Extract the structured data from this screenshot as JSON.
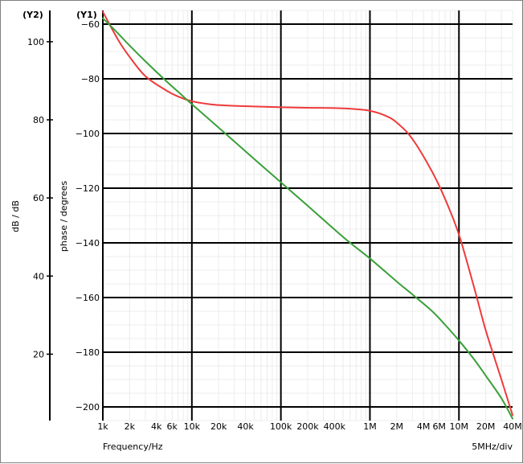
{
  "chart_data": {
    "type": "line",
    "title": "",
    "xlabel": "Frequency/Hz",
    "x_scale": "log",
    "xlim": [
      1000,
      40000000
    ],
    "x_ticks": [
      1000,
      2000,
      4000,
      6000,
      10000,
      20000,
      40000,
      100000,
      200000,
      400000,
      1000000,
      2000000,
      4000000,
      6000000,
      10000000,
      20000000,
      40000000
    ],
    "x_tick_labels": [
      "1k",
      "2k",
      "4k",
      "6k",
      "10k",
      "20k",
      "40k",
      "100k",
      "200k",
      "400k",
      "1M",
      "2M",
      "4M",
      "6M",
      "10M",
      "20M",
      "40M"
    ],
    "x_note": "5MHz/div",
    "y1": {
      "marker": "(Y1)",
      "label": "phase / degrees",
      "lim": [
        -205,
        -55
      ],
      "ticks": [
        -60,
        -80,
        -100,
        -120,
        -140,
        -160,
        -180,
        -200
      ],
      "tick_labels": [
        "-60",
        "-80",
        "-100",
        "-120",
        "-140",
        "-160",
        "-180",
        "-200"
      ]
    },
    "y2": {
      "marker": "(Y2)",
      "label": "dB / dB",
      "lim": [
        3,
        108
      ],
      "ticks": [
        100,
        80,
        60,
        40,
        20
      ],
      "tick_labels": [
        "100",
        "80",
        "60",
        "40",
        "20"
      ]
    },
    "grid": true,
    "series": [
      {
        "axis": "y1",
        "color": "#ee3b3b",
        "x": [
          1000,
          1500,
          2000,
          3000,
          5000,
          7000,
          10000,
          15000,
          20000,
          30000,
          50000,
          100000,
          200000,
          400000,
          700000,
          1000000,
          1500000,
          2000000,
          3000000,
          5000000,
          7000000,
          10000000,
          15000000,
          20000000,
          30000000,
          40000000
        ],
        "y": [
          -55.5,
          -66,
          -72,
          -79,
          -84,
          -86.5,
          -88.2,
          -89.2,
          -89.6,
          -89.9,
          -90.1,
          -90.4,
          -90.6,
          -90.7,
          -91.1,
          -91.7,
          -93.5,
          -96,
          -102,
          -114,
          -124,
          -137,
          -157,
          -172,
          -190,
          -203
        ]
      },
      {
        "axis": "y2",
        "color": "#3aa03a",
        "x": [
          1000,
          1500,
          2000,
          3000,
          5000,
          7000,
          10000,
          20000,
          50000,
          100000,
          200000,
          500000,
          1000000,
          2000000,
          3000000,
          5000000,
          7000000,
          10000000,
          15000000,
          20000000,
          30000000,
          40000000
        ],
        "y": [
          106,
          102,
          99,
          95,
          90.2,
          87.2,
          84,
          78,
          70,
          64,
          58,
          50,
          44.5,
          38.6,
          35.3,
          31,
          27.5,
          23.5,
          18.5,
          14.5,
          8.7,
          3.5
        ]
      }
    ]
  }
}
